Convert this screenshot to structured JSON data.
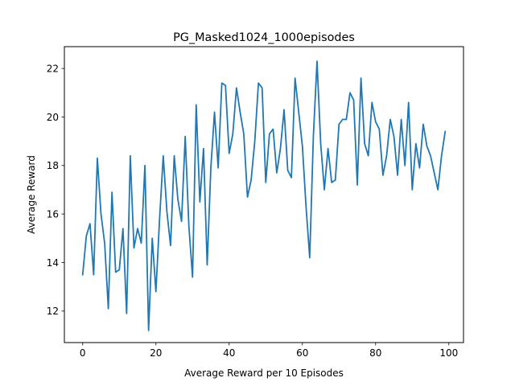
{
  "chart_data": {
    "type": "line",
    "title": "PG_Masked1024_1000episodes",
    "xlabel": "Average Reward per 10 Episodes",
    "ylabel": "Average Reward",
    "xlim": [
      -5,
      104
    ],
    "ylim": [
      10.7,
      22.9
    ],
    "xticks": [
      0,
      20,
      40,
      60,
      80,
      100
    ],
    "yticks": [
      12,
      14,
      16,
      18,
      20,
      22
    ],
    "grid": false,
    "legend": "none",
    "line_color": "#1f77b4",
    "series": [
      {
        "x": [
          0,
          1,
          2,
          3,
          4,
          5,
          6,
          7,
          8,
          9,
          10,
          11,
          12,
          13,
          14,
          15,
          16,
          17,
          18,
          19,
          20,
          21,
          22,
          23,
          24,
          25,
          26,
          27,
          28,
          29,
          30,
          31,
          32,
          33,
          34,
          35,
          36,
          37,
          38,
          39,
          40,
          41,
          42,
          43,
          44,
          45,
          46,
          47,
          48,
          49,
          50,
          51,
          52,
          53,
          54,
          55,
          56,
          57,
          58,
          59,
          60,
          61,
          62,
          63,
          64,
          65,
          66,
          67,
          68,
          69,
          70,
          71,
          72,
          73,
          74,
          75,
          76,
          77,
          78,
          79,
          80,
          81,
          82,
          83,
          84,
          85,
          86,
          87,
          88,
          89,
          90,
          91,
          92,
          93,
          94,
          95,
          96,
          97,
          98,
          99
        ],
        "values": [
          13.5,
          15.1,
          15.6,
          13.5,
          18.3,
          16.0,
          14.8,
          12.1,
          16.9,
          13.6,
          13.7,
          15.4,
          11.9,
          18.4,
          14.6,
          15.4,
          14.8,
          18.0,
          11.2,
          15.0,
          12.8,
          15.8,
          18.4,
          16.1,
          14.7,
          18.4,
          16.6,
          15.7,
          19.2,
          15.5,
          13.4,
          20.5,
          16.5,
          18.7,
          13.9,
          17.9,
          20.2,
          17.9,
          21.4,
          21.3,
          18.5,
          19.3,
          21.2,
          20.2,
          19.3,
          16.7,
          17.4,
          19.0,
          21.4,
          21.2,
          17.3,
          19.3,
          19.5,
          17.7,
          18.7,
          20.3,
          17.8,
          17.5,
          21.6,
          20.2,
          18.8,
          16.3,
          14.2,
          19.2,
          22.3,
          18.9,
          17.0,
          18.7,
          17.3,
          17.4,
          19.7,
          19.9,
          19.9,
          21.0,
          20.7,
          17.2,
          21.6,
          18.9,
          18.4,
          20.6,
          19.8,
          19.5,
          17.6,
          18.4,
          19.9,
          19.2,
          17.6,
          19.9,
          18.0,
          20.6,
          17.0,
          18.9,
          17.9,
          19.7,
          18.8,
          18.4,
          17.7,
          17.0,
          18.4,
          19.4
        ]
      }
    ]
  }
}
